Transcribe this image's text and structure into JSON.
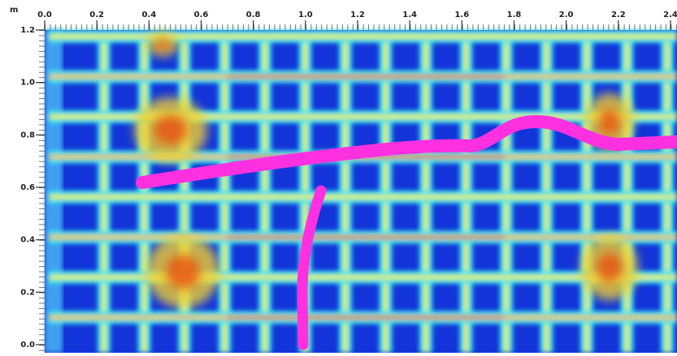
{
  "chart_data": {
    "type": "scan",
    "unit": "m",
    "xlim": [
      0,
      2.4
    ],
    "ylim": [
      0,
      1.2
    ],
    "xticks": [
      {
        "value": 0,
        "label": "0.0"
      },
      0.2,
      0.4,
      0.6,
      0.8,
      {
        "value": 1,
        "label": "1.0"
      },
      1.2,
      1.4,
      1.6,
      1.8,
      {
        "value": 2,
        "label": "2.0"
      },
      2.2,
      2.4
    ],
    "yticks": [
      {
        "value": 0,
        "label": "0.0"
      },
      0.2,
      0.4,
      0.6,
      0.8,
      {
        "value": 1,
        "label": "1.0"
      },
      1.2
    ]
  }
}
